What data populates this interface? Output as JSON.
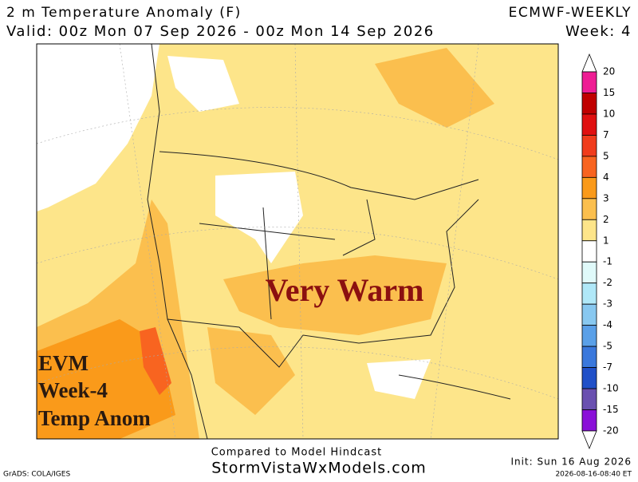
{
  "header": {
    "title": "2 m Temperature Anomaly (F)",
    "model": "ECMWF-WEEKLY",
    "valid": "Valid: 00z Mon 07 Sep 2026 - 00z Mon 14 Sep 2026",
    "week": "Week: 4"
  },
  "annotations": {
    "main": "Very Warm",
    "label_lines": [
      "EVM",
      "Week-4",
      "Temp Anom"
    ]
  },
  "footer": {
    "compared": "Compared to Model Hindcast",
    "site": "StormVistaWxModels.com",
    "init": "Init: Sun 16 Aug 2026",
    "timestamp": "2026-08-16-08:40 ET",
    "credit": "GrADS: COLA/IGES"
  },
  "legend": {
    "labels": [
      "20",
      "15",
      "10",
      "7",
      "5",
      "4",
      "3",
      "2",
      "1",
      "-1",
      "-2",
      "-3",
      "-4",
      "-5",
      "-7",
      "-10",
      "-15",
      "-20"
    ],
    "colors": [
      "#ffffff",
      "#ee1d94",
      "#c00000",
      "#e01010",
      "#f03c1c",
      "#f86420",
      "#fa9a1a",
      "#fbbf4e",
      "#fde58a",
      "#ffffff",
      "#e0fafa",
      "#b0e8f8",
      "#88c8f0",
      "#5aa0e8",
      "#3a78dc",
      "#2050c8",
      "#6a50b0",
      "#8a10d8",
      "#ffffff"
    ]
  }
}
